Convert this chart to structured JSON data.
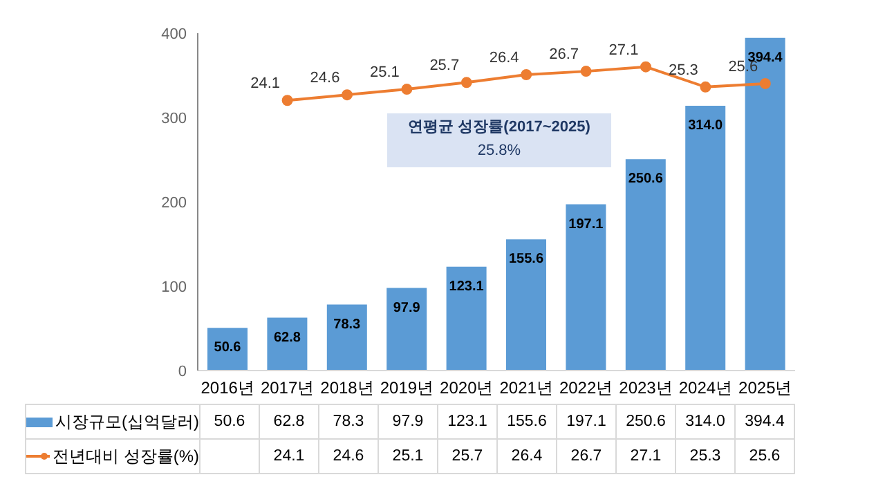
{
  "chart_data": {
    "type": "bar",
    "categories": [
      "2016년",
      "2017년",
      "2018년",
      "2019년",
      "2020년",
      "2021년",
      "2022년",
      "2023년",
      "2024년",
      "2025년"
    ],
    "series": [
      {
        "name": "시장규모(십억달러)",
        "color": "#5b9bd5",
        "values": [
          50.6,
          62.8,
          78.3,
          97.9,
          123.1,
          155.6,
          197.1,
          250.6,
          314.0,
          394.4
        ],
        "value_labels": [
          "50.6",
          "62.8",
          "78.3",
          "97.9",
          "123.1",
          "155.6",
          "197.1",
          "250.6",
          "314.0",
          "394.4"
        ]
      },
      {
        "name": "전년대비 성장률(%)",
        "type": "line",
        "axis": "y2",
        "color": "#ed7d31",
        "values": [
          null,
          24.1,
          24.6,
          25.1,
          25.7,
          26.4,
          26.7,
          27.1,
          25.3,
          25.6
        ],
        "value_labels": [
          null,
          "24.1",
          "24.6",
          "25.1",
          "25.7",
          "26.4",
          "26.7",
          "27.1",
          "25.3",
          "25.6"
        ]
      }
    ],
    "ylim": [
      0,
      400
    ],
    "yticks": [
      0,
      100,
      200,
      300,
      400
    ],
    "grid": false,
    "marker": "circle",
    "legend": "bottom",
    "annotations": [
      "연평균 성장률(2017~2025)",
      "25.8%"
    ]
  }
}
